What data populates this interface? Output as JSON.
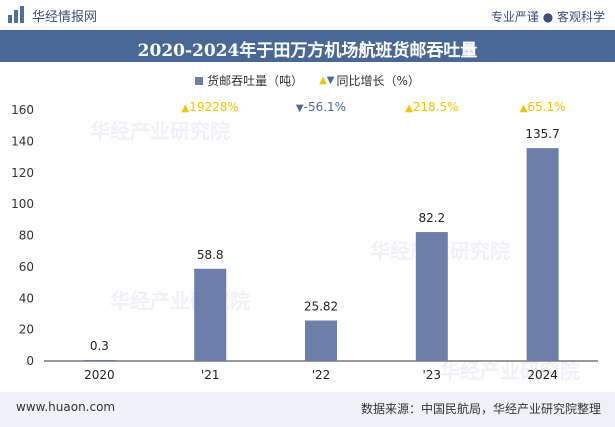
{
  "header": {
    "brand": "华经情报网",
    "tagline": "专业严谨 ● 客观科学"
  },
  "legend": {
    "bar_label": "货邮吞吐量（吨）",
    "growth_label": "同比增长（%）"
  },
  "footer": {
    "website": "www.huaon.com",
    "source": "数据来源：中国民航局，华经产业研究院整理"
  },
  "watermark": "华经产业研究院",
  "colors": {
    "bar": "#6b7fa8",
    "title_bg": "#4a6896",
    "up": "#f5c400",
    "down": "#4a6896"
  },
  "chart_data": {
    "type": "bar",
    "title": "2020-2024年于田万方机场航班货邮吞吐量",
    "categories": [
      "2020",
      "'21",
      "'22",
      "'23",
      "2024"
    ],
    "series": [
      {
        "name": "货邮吞吐量（吨）",
        "values": [
          0.3,
          58.8,
          25.82,
          82.2,
          135.7
        ],
        "labels": [
          "0.3",
          "58.8",
          "25.82",
          "82.2",
          "135.7"
        ]
      }
    ],
    "growth": {
      "name": "同比增长（%）",
      "values": [
        null,
        19228,
        -56.1,
        218.5,
        65.1
      ],
      "labels": [
        "",
        "19228%",
        "-56.1%",
        "218.5%",
        "65.1%"
      ]
    },
    "ylim": [
      0,
      160
    ],
    "yticks": [
      0,
      20,
      40,
      60,
      80,
      100,
      120,
      140,
      160
    ],
    "grid": false
  }
}
